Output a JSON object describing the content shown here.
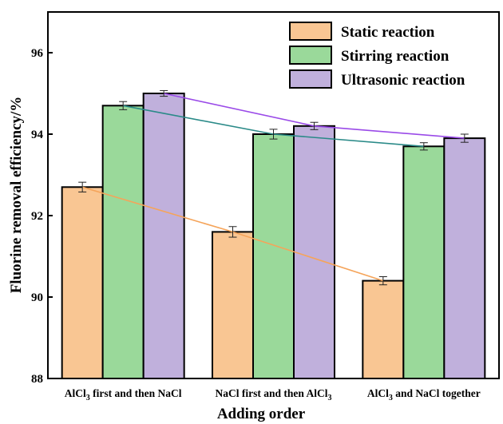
{
  "chart_data": {
    "type": "bar",
    "xlabel": "Adding order",
    "ylabel": "Fluorine removal efficiency/%",
    "ylim": [
      88,
      97
    ],
    "yticks": [
      88,
      90,
      92,
      94,
      96
    ],
    "categories": [
      {
        "main": "AlCl",
        "sub": "3",
        "rest": " first and then NaCl"
      },
      {
        "main": "NaCl first and then AlCl",
        "sub": "3",
        "rest": ""
      },
      {
        "main": "AlCl",
        "sub": "3",
        "rest": " and NaCl together"
      }
    ],
    "series": [
      {
        "name": "Static reaction",
        "values": [
          92.7,
          91.6,
          90.4
        ],
        "errors": [
          0.12,
          0.13,
          0.1
        ],
        "color": "#f9c693",
        "line_color": "#f5a45a"
      },
      {
        "name": "Stirring reaction",
        "values": [
          94.7,
          94.0,
          93.7
        ],
        "errors": [
          0.1,
          0.12,
          0.09
        ],
        "color": "#9ad99a",
        "line_color": "#2a8a88"
      },
      {
        "name": "Ultrasonic reaction",
        "values": [
          95.0,
          94.2,
          93.9
        ],
        "errors": [
          0.07,
          0.09,
          0.1
        ],
        "color": "#c0b0dc",
        "line_color": "#9a4ae8"
      }
    ],
    "grid": false,
    "legend": "top-right",
    "trend_lines": true,
    "error_bars": true
  }
}
